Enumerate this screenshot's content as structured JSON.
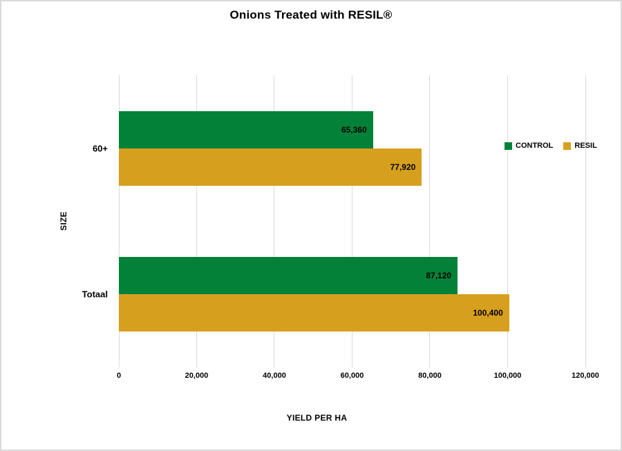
{
  "chart_data": {
    "type": "bar",
    "orientation": "horizontal",
    "title": "Onions Treated with RESIL®",
    "xlabel": "YIELD PER HA",
    "ylabel": "SIZE",
    "categories": [
      "60+",
      "Totaal"
    ],
    "series": [
      {
        "name": "CONTROL",
        "color": "#048139",
        "values": [
          65360,
          87120
        ],
        "labels": [
          "65,360",
          "87,120"
        ]
      },
      {
        "name": "RESIL",
        "color": "#D6A01E",
        "values": [
          77920,
          100400
        ],
        "labels": [
          "77,920",
          "100,400"
        ]
      }
    ],
    "xlim": [
      0,
      120000
    ],
    "xticks": [
      {
        "value": 0,
        "label": "0"
      },
      {
        "value": 20000,
        "label": "20,000"
      },
      {
        "value": 40000,
        "label": "40,000"
      },
      {
        "value": 60000,
        "label": "60,000"
      },
      {
        "value": 80000,
        "label": "80,000"
      },
      {
        "value": 100000,
        "label": "100,000"
      },
      {
        "value": 120000,
        "label": "120,000"
      }
    ],
    "grid": "vertical",
    "gridline_color": "#D9D9D9",
    "legend_position": "right",
    "background_color": "#FFFFFF",
    "border_color": "#D9D9D9"
  }
}
